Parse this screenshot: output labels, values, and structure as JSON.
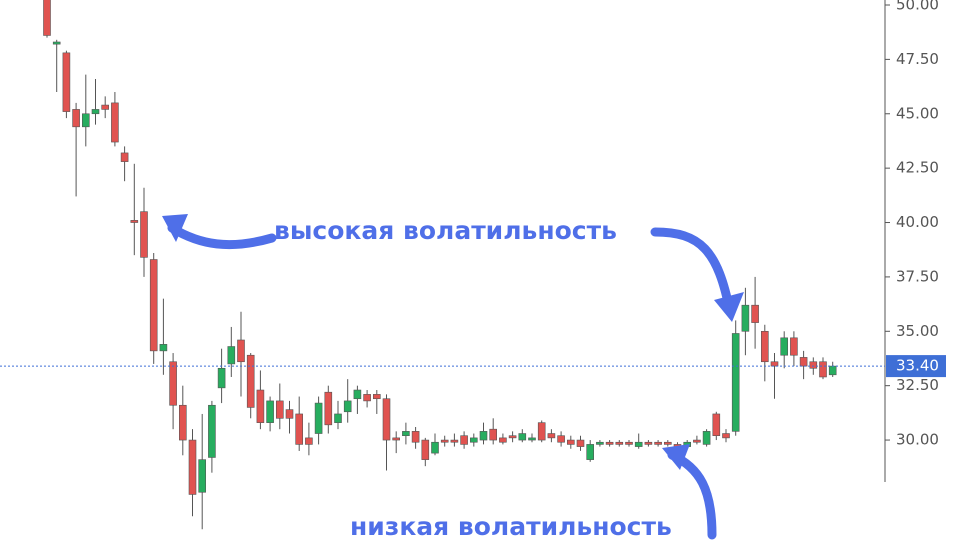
{
  "chart_data": {
    "type": "candlestick",
    "up_color": "#27ad5f",
    "down_color": "#e05350",
    "wick_color": "#555555",
    "ylim": [
      24.67,
      50.23
    ],
    "yticks": [
      {
        "value": 30,
        "label": "30.00"
      },
      {
        "value": 32.5,
        "label": "32.50"
      },
      {
        "value": 35,
        "label": "35.00"
      },
      {
        "value": 37.5,
        "label": "37.50"
      },
      {
        "value": 40,
        "label": "40.00"
      },
      {
        "value": 42.5,
        "label": "42.50"
      },
      {
        "value": 45,
        "label": "45.00"
      },
      {
        "value": 47.5,
        "label": "47.50"
      },
      {
        "value": 50,
        "label": "50.00"
      }
    ],
    "last_price": {
      "value": 33.4,
      "label": "33.40"
    },
    "last_price_color": "#3e6fd6",
    "annotations": [
      "высокая волатильность",
      "низкая волатильность"
    ],
    "open": [
      51,
      48.2,
      47.8,
      45.2,
      44.4,
      45.0,
      45.4,
      45.5,
      43.2,
      40.1,
      40.5,
      38.3,
      34.1,
      33.6,
      31.6,
      30.0,
      27.6,
      29.2,
      32.4,
      33.5,
      34.6,
      33.9,
      32.3,
      30.8,
      31.8,
      31.4,
      31.2,
      30.1,
      30.3,
      32.2,
      30.8,
      31.3,
      31.9,
      32.1,
      32.1,
      31.9,
      30.1,
      30.2,
      30.4,
      30.0,
      29.4,
      30.0,
      30.0,
      30.2,
      29.9,
      30.0,
      30.5,
      30.1,
      30.2,
      30.0,
      30.0,
      30.8,
      30.3,
      30.2,
      30.0,
      30.0,
      29.1,
      29.8,
      29.9,
      29.9,
      29.9,
      29.7,
      29.9,
      29.9,
      29.9,
      29.8,
      29.7,
      30.0,
      29.8,
      31.2,
      30.3,
      30.4,
      35.0,
      36.2,
      35.0,
      33.6,
      33.9,
      34.7,
      33.8,
      33.6,
      33.6,
      33.0
    ],
    "high": [
      51,
      48.4,
      47.9,
      45.5,
      46.8,
      46.6,
      45.8,
      46.0,
      43.5,
      42.7,
      41.6,
      38.6,
      36.5,
      34.0,
      32.5,
      30.5,
      31.2,
      31.8,
      34.2,
      35.2,
      35.9,
      34.0,
      33.2,
      32.0,
      32.6,
      31.8,
      32.0,
      30.8,
      32.0,
      32.5,
      31.8,
      32.8,
      32.5,
      32.3,
      32.3,
      32.1,
      30.4,
      30.8,
      30.6,
      30.1,
      30.3,
      30.2,
      30.3,
      30.4,
      30.3,
      30.8,
      31.0,
      30.3,
      30.4,
      30.5,
      30.3,
      30.9,
      30.5,
      30.4,
      30.2,
      30.2,
      30.0,
      30.0,
      30.0,
      30.0,
      30.0,
      30.3,
      30.0,
      30.0,
      30.0,
      29.9,
      30.0,
      30.2,
      30.5,
      31.3,
      30.5,
      35.5,
      37.0,
      37.5,
      35.3,
      34.0,
      35.0,
      35.0,
      34.1,
      33.8,
      33.8,
      33.6
    ],
    "low": [
      48.5,
      46.0,
      44.8,
      41.2,
      43.5,
      44.5,
      44.8,
      43.5,
      41.9,
      38.5,
      37.5,
      33.5,
      33.0,
      30.5,
      29.3,
      26.5,
      25.9,
      28.5,
      31.7,
      32.9,
      32.0,
      31.0,
      30.5,
      30.4,
      30.5,
      30.3,
      29.5,
      29.3,
      29.8,
      30.3,
      30.5,
      30.8,
      31.2,
      31.5,
      31.2,
      28.6,
      29.4,
      29.8,
      29.6,
      28.8,
      29.3,
      29.7,
      29.7,
      29.6,
      29.7,
      29.8,
      29.8,
      29.8,
      29.9,
      29.9,
      29.9,
      29.9,
      29.9,
      29.7,
      29.6,
      29.5,
      29.0,
      29.7,
      29.7,
      29.7,
      29.7,
      29.6,
      29.7,
      29.7,
      29.7,
      29.5,
      29.6,
      29.8,
      29.7,
      30.0,
      29.9,
      30.2,
      33.9,
      34.2,
      32.7,
      31.9,
      33.3,
      33.4,
      32.8,
      33.0,
      32.8,
      32.9
    ],
    "close": [
      48.6,
      48.3,
      45.1,
      44.4,
      45.0,
      45.2,
      45.2,
      43.7,
      42.8,
      40.0,
      38.4,
      34.1,
      34.4,
      31.6,
      30.0,
      27.5,
      29.1,
      31.6,
      33.3,
      34.3,
      33.6,
      31.5,
      30.8,
      31.8,
      31.0,
      31.0,
      29.8,
      29.8,
      31.7,
      30.7,
      31.2,
      31.8,
      32.3,
      31.8,
      31.9,
      30.0,
      30.0,
      30.4,
      29.9,
      29.1,
      29.9,
      29.9,
      29.9,
      29.8,
      30.1,
      30.4,
      30.0,
      29.9,
      30.1,
      30.3,
      30.1,
      30.0,
      30.1,
      29.9,
      29.8,
      29.7,
      29.8,
      29.9,
      29.8,
      29.8,
      29.8,
      29.9,
      29.8,
      29.8,
      29.8,
      29.6,
      29.9,
      29.9,
      30.4,
      30.2,
      30.1,
      34.9,
      36.2,
      35.4,
      33.6,
      33.4,
      34.7,
      33.9,
      33.4,
      33.3,
      32.9,
      33.4
    ]
  }
}
